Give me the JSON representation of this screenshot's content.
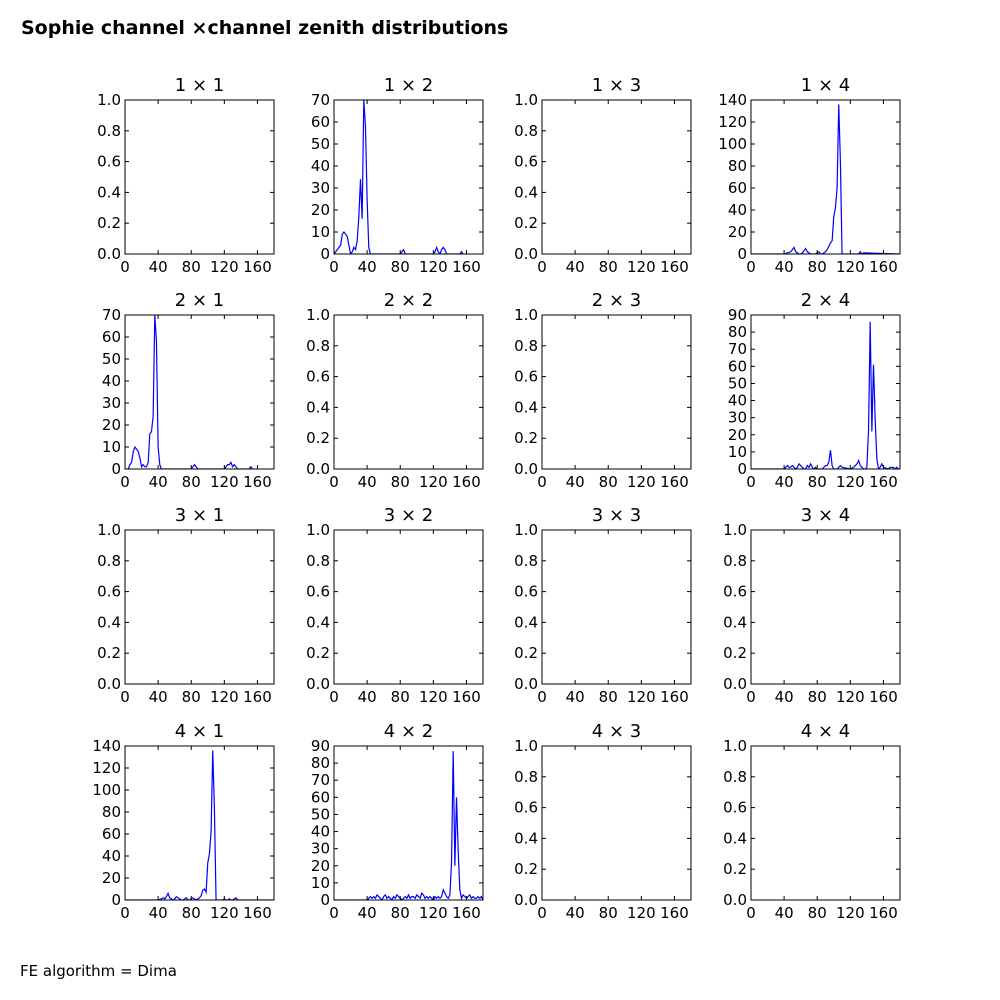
{
  "figure": {
    "title": "Sophie channel ×channel zenith distributions",
    "footer": "FE algorithm = Dima"
  },
  "chart_data": [
    {
      "type": "line",
      "row": 1,
      "col": 1,
      "title": "1  × 1",
      "x_ticks": [
        "0",
        "40",
        "80",
        "120",
        "160"
      ],
      "xlim": [
        0,
        180
      ],
      "ylim": [
        0,
        1
      ],
      "y_ticks": [
        "0.0",
        "0.2",
        "0.4",
        "0.6",
        "0.8",
        "1.0"
      ],
      "series": []
    },
    {
      "type": "line",
      "row": 1,
      "col": 2,
      "title": "1  × 2",
      "x_ticks": [
        "0",
        "40",
        "80",
        "120",
        "160"
      ],
      "xlim": [
        0,
        180
      ],
      "ylim": [
        0,
        70
      ],
      "y_ticks": [
        "0",
        "10",
        "20",
        "30",
        "40",
        "50",
        "60",
        "70"
      ],
      "series": [
        {
          "color": "#0000ff",
          "x": [
            0,
            4,
            8,
            10,
            12,
            14,
            16,
            18,
            20,
            22,
            24,
            26,
            28,
            30,
            32,
            34,
            36,
            38,
            40,
            42,
            44,
            46,
            80,
            82,
            84,
            86,
            120,
            122,
            124,
            126,
            128,
            130,
            132,
            134,
            136,
            152,
            154,
            156
          ],
          "y": [
            0,
            2,
            4,
            9,
            10,
            9,
            8,
            4,
            0,
            1,
            3,
            2,
            6,
            17,
            34,
            16,
            70,
            58,
            25,
            3,
            0,
            0,
            0,
            1,
            2,
            0,
            0,
            1,
            3,
            1,
            0,
            2,
            3,
            2,
            0,
            0,
            1,
            0
          ]
        }
      ]
    },
    {
      "type": "line",
      "row": 1,
      "col": 3,
      "title": "1  × 3",
      "x_ticks": [
        "0",
        "40",
        "80",
        "120",
        "160"
      ],
      "xlim": [
        0,
        180
      ],
      "ylim": [
        0,
        1
      ],
      "y_ticks": [
        "0.0",
        "0.2",
        "0.4",
        "0.6",
        "0.8",
        "1.0"
      ],
      "series": []
    },
    {
      "type": "line",
      "row": 1,
      "col": 4,
      "title": "1  × 4",
      "x_ticks": [
        "0",
        "40",
        "80",
        "120",
        "160"
      ],
      "xlim": [
        0,
        180
      ],
      "ylim": [
        0,
        140
      ],
      "y_ticks": [
        "0",
        "20",
        "40",
        "60",
        "80",
        "100",
        "120",
        "140"
      ],
      "series": [
        {
          "color": "#0000ff",
          "x": [
            0,
            40,
            44,
            48,
            50,
            52,
            54,
            56,
            58,
            60,
            62,
            64,
            66,
            68,
            70,
            72,
            78,
            80,
            82,
            84,
            86,
            88,
            90,
            92,
            94,
            96,
            98,
            100,
            102,
            104,
            106,
            108,
            110,
            120,
            130,
            132,
            134,
            136,
            180
          ],
          "y": [
            0,
            0,
            1,
            2,
            4,
            6,
            2,
            1,
            0,
            0,
            1,
            3,
            5,
            2,
            1,
            0,
            0,
            1,
            2,
            0,
            0,
            1,
            2,
            4,
            7,
            10,
            12,
            34,
            42,
            60,
            136,
            84,
            0,
            0,
            0,
            2,
            0,
            1,
            0
          ]
        }
      ]
    },
    {
      "type": "line",
      "row": 2,
      "col": 1,
      "title": "2  × 1",
      "x_ticks": [
        "0",
        "40",
        "80",
        "120",
        "160"
      ],
      "xlim": [
        0,
        180
      ],
      "ylim": [
        0,
        70
      ],
      "y_ticks": [
        "0",
        "10",
        "20",
        "30",
        "40",
        "50",
        "60",
        "70"
      ],
      "series": [
        {
          "color": "#0000ff",
          "x": [
            0,
            4,
            6,
            8,
            10,
            12,
            14,
            16,
            18,
            20,
            22,
            24,
            26,
            28,
            30,
            32,
            34,
            36,
            38,
            40,
            42,
            44,
            46,
            80,
            82,
            84,
            86,
            88,
            120,
            122,
            124,
            126,
            128,
            130,
            132,
            134,
            136,
            150,
            152,
            154
          ],
          "y": [
            0,
            0,
            2,
            3,
            8,
            10,
            9,
            8,
            5,
            1,
            2,
            1,
            1,
            3,
            16,
            17,
            24,
            70,
            58,
            10,
            2,
            0,
            0,
            0,
            1,
            2,
            1,
            0,
            0,
            1,
            2,
            2,
            3,
            1,
            2,
            1,
            0,
            0,
            1,
            0
          ]
        }
      ]
    },
    {
      "type": "line",
      "row": 2,
      "col": 2,
      "title": "2  × 2",
      "x_ticks": [
        "0",
        "40",
        "80",
        "120",
        "160"
      ],
      "xlim": [
        0,
        180
      ],
      "ylim": [
        0,
        1
      ],
      "y_ticks": [
        "0.0",
        "0.2",
        "0.4",
        "0.6",
        "0.8",
        "1.0"
      ],
      "series": []
    },
    {
      "type": "line",
      "row": 2,
      "col": 3,
      "title": "2  × 3",
      "x_ticks": [
        "0",
        "40",
        "80",
        "120",
        "160"
      ],
      "xlim": [
        0,
        180
      ],
      "ylim": [
        0,
        1
      ],
      "y_ticks": [
        "0.0",
        "0.2",
        "0.4",
        "0.6",
        "0.8",
        "1.0"
      ],
      "series": []
    },
    {
      "type": "line",
      "row": 2,
      "col": 4,
      "title": "2  × 4",
      "x_ticks": [
        "0",
        "40",
        "80",
        "120",
        "160"
      ],
      "xlim": [
        0,
        180
      ],
      "ylim": [
        0,
        90
      ],
      "y_ticks": [
        "0",
        "10",
        "20",
        "30",
        "40",
        "50",
        "60",
        "70",
        "80",
        "90"
      ],
      "series": [
        {
          "color": "#0000ff",
          "x": [
            0,
            40,
            42,
            44,
            46,
            48,
            50,
            52,
            54,
            56,
            58,
            60,
            62,
            64,
            66,
            68,
            70,
            72,
            74,
            76,
            78,
            80,
            86,
            88,
            90,
            92,
            94,
            96,
            98,
            100,
            102,
            104,
            106,
            108,
            110,
            120,
            124,
            126,
            128,
            130,
            132,
            134,
            136,
            138,
            140,
            142,
            144,
            146,
            148,
            150,
            152,
            154,
            156,
            158,
            160,
            166,
            168,
            170,
            172,
            174,
            176,
            178,
            180
          ],
          "y": [
            0,
            0,
            1,
            2,
            1,
            1,
            2,
            1,
            0,
            1,
            3,
            2,
            1,
            0,
            0,
            2,
            1,
            3,
            1,
            0,
            1,
            0,
            0,
            1,
            2,
            2,
            4,
            11,
            2,
            0,
            0,
            0,
            1,
            2,
            1,
            0,
            1,
            2,
            3,
            5,
            2,
            1,
            0,
            0,
            1,
            23,
            86,
            22,
            61,
            29,
            6,
            0,
            1,
            3,
            1,
            0,
            1,
            1,
            1,
            0,
            1,
            0,
            0
          ]
        }
      ]
    },
    {
      "type": "line",
      "row": 3,
      "col": 1,
      "title": "3  × 1",
      "x_ticks": [
        "0",
        "40",
        "80",
        "120",
        "160"
      ],
      "xlim": [
        0,
        180
      ],
      "ylim": [
        0,
        1
      ],
      "y_ticks": [
        "0.0",
        "0.2",
        "0.4",
        "0.6",
        "0.8",
        "1.0"
      ],
      "series": []
    },
    {
      "type": "line",
      "row": 3,
      "col": 2,
      "title": "3  × 2",
      "x_ticks": [
        "0",
        "40",
        "80",
        "120",
        "160"
      ],
      "xlim": [
        0,
        180
      ],
      "ylim": [
        0,
        1
      ],
      "y_ticks": [
        "0.0",
        "0.2",
        "0.4",
        "0.6",
        "0.8",
        "1.0"
      ],
      "series": []
    },
    {
      "type": "line",
      "row": 3,
      "col": 3,
      "title": "3  × 3",
      "x_ticks": [
        "0",
        "40",
        "80",
        "120",
        "160"
      ],
      "xlim": [
        0,
        180
      ],
      "ylim": [
        0,
        1
      ],
      "y_ticks": [
        "0.0",
        "0.2",
        "0.4",
        "0.6",
        "0.8",
        "1.0"
      ],
      "series": []
    },
    {
      "type": "line",
      "row": 3,
      "col": 4,
      "title": "3  × 4",
      "x_ticks": [
        "0",
        "40",
        "80",
        "120",
        "160"
      ],
      "xlim": [
        0,
        180
      ],
      "ylim": [
        0,
        1
      ],
      "y_ticks": [
        "0.0",
        "0.2",
        "0.4",
        "0.6",
        "0.8",
        "1.0"
      ],
      "series": []
    },
    {
      "type": "line",
      "row": 4,
      "col": 1,
      "title": "4  × 1",
      "x_ticks": [
        "0",
        "40",
        "80",
        "120",
        "160"
      ],
      "xlim": [
        0,
        180
      ],
      "ylim": [
        0,
        140
      ],
      "y_ticks": [
        "0",
        "20",
        "40",
        "60",
        "80",
        "100",
        "120",
        "140"
      ],
      "series": [
        {
          "color": "#0000ff",
          "x": [
            0,
            40,
            44,
            46,
            48,
            50,
            52,
            54,
            56,
            58,
            60,
            62,
            64,
            66,
            68,
            70,
            72,
            74,
            76,
            78,
            80,
            82,
            84,
            86,
            88,
            90,
            92,
            94,
            96,
            98,
            100,
            102,
            104,
            106,
            108,
            110,
            118,
            120,
            122,
            124,
            126,
            128,
            130,
            132,
            134,
            136,
            180
          ],
          "y": [
            0,
            0,
            1,
            2,
            1,
            3,
            6,
            2,
            1,
            0,
            1,
            3,
            2,
            1,
            0,
            0,
            1,
            2,
            0,
            0,
            1,
            2,
            1,
            0,
            1,
            2,
            4,
            9,
            10,
            7,
            34,
            42,
            62,
            136,
            84,
            0,
            0,
            1,
            0,
            0,
            1,
            0,
            0,
            1,
            2,
            0,
            0
          ]
        }
      ]
    },
    {
      "type": "line",
      "row": 4,
      "col": 2,
      "title": "4  × 2",
      "x_ticks": [
        "0",
        "40",
        "80",
        "120",
        "160"
      ],
      "xlim": [
        0,
        180
      ],
      "ylim": [
        0,
        90
      ],
      "y_ticks": [
        "0",
        "10",
        "20",
        "30",
        "40",
        "50",
        "60",
        "70",
        "80",
        "90"
      ],
      "series": [
        {
          "color": "#0000ff",
          "x": [
            0,
            40,
            42,
            44,
            46,
            48,
            50,
            52,
            54,
            56,
            58,
            60,
            62,
            64,
            66,
            68,
            70,
            72,
            74,
            76,
            78,
            80,
            82,
            84,
            86,
            88,
            90,
            92,
            94,
            96,
            98,
            100,
            102,
            104,
            106,
            108,
            110,
            112,
            114,
            116,
            118,
            120,
            122,
            124,
            126,
            128,
            130,
            132,
            134,
            136,
            138,
            140,
            142,
            144,
            146,
            148,
            150,
            152,
            154,
            156,
            158,
            160,
            162,
            164,
            166,
            168,
            170,
            172,
            174,
            176,
            178,
            180
          ],
          "y": [
            0,
            0,
            1,
            2,
            1,
            2,
            1,
            3,
            2,
            1,
            0,
            2,
            3,
            1,
            2,
            1,
            0,
            2,
            1,
            3,
            2,
            1,
            0,
            1,
            2,
            1,
            3,
            1,
            2,
            2,
            1,
            3,
            2,
            1,
            4,
            3,
            1,
            2,
            1,
            2,
            1,
            0,
            2,
            1,
            2,
            1,
            2,
            6,
            4,
            2,
            1,
            3,
            22,
            87,
            20,
            60,
            29,
            6,
            1,
            3,
            2,
            1,
            2,
            3,
            1,
            2,
            1,
            1,
            2,
            1,
            2,
            0
          ]
        }
      ]
    },
    {
      "type": "line",
      "row": 4,
      "col": 3,
      "title": "4  × 3",
      "x_ticks": [
        "0",
        "40",
        "80",
        "120",
        "160"
      ],
      "xlim": [
        0,
        180
      ],
      "ylim": [
        0,
        1
      ],
      "y_ticks": [
        "0.0",
        "0.2",
        "0.4",
        "0.6",
        "0.8",
        "1.0"
      ],
      "series": []
    },
    {
      "type": "line",
      "row": 4,
      "col": 4,
      "title": "4  × 4",
      "x_ticks": [
        "0",
        "40",
        "80",
        "120",
        "160"
      ],
      "xlim": [
        0,
        180
      ],
      "ylim": [
        0,
        1
      ],
      "y_ticks": [
        "0.0",
        "0.2",
        "0.4",
        "0.6",
        "0.8",
        "1.0"
      ],
      "series": []
    }
  ]
}
